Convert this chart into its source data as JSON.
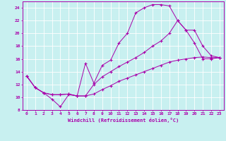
{
  "xlabel": "Windchill (Refroidissement éolien,°C)",
  "xlim": [
    -0.5,
    23.5
  ],
  "ylim": [
    8,
    25
  ],
  "xticks": [
    0,
    1,
    2,
    3,
    4,
    5,
    6,
    7,
    8,
    9,
    10,
    11,
    12,
    13,
    14,
    15,
    16,
    17,
    18,
    19,
    20,
    21,
    22,
    23
  ],
  "yticks": [
    8,
    10,
    12,
    14,
    16,
    18,
    20,
    22,
    24
  ],
  "background_color": "#c8f0f0",
  "grid_color": "#a0d8d8",
  "line_color": "#aa00aa",
  "line1_x": [
    0,
    1,
    2,
    3,
    4,
    5,
    6,
    7,
    8,
    9,
    10,
    11,
    12,
    13,
    14,
    15,
    16,
    17,
    18,
    19,
    20,
    21,
    22,
    23
  ],
  "line1_y": [
    13.3,
    11.5,
    10.7,
    9.7,
    8.5,
    10.4,
    10.2,
    15.3,
    12.2,
    15.0,
    15.8,
    18.5,
    20.0,
    23.2,
    24.0,
    24.5,
    24.5,
    24.3,
    22.0,
    20.5,
    18.5,
    16.0,
    16.0,
    16.2
  ],
  "line2_x": [
    0,
    1,
    2,
    3,
    4,
    5,
    6,
    7,
    8,
    9,
    10,
    11,
    12,
    13,
    14,
    15,
    16,
    17,
    18,
    19,
    20,
    21,
    22,
    23
  ],
  "line2_y": [
    13.3,
    11.5,
    10.7,
    10.4,
    10.4,
    10.5,
    10.2,
    10.2,
    12.0,
    13.2,
    14.0,
    14.8,
    15.5,
    16.2,
    17.0,
    18.0,
    18.8,
    20.0,
    22.0,
    20.5,
    20.5,
    18.0,
    16.5,
    16.2
  ],
  "line3_x": [
    0,
    1,
    2,
    3,
    4,
    5,
    6,
    7,
    8,
    9,
    10,
    11,
    12,
    13,
    14,
    15,
    16,
    17,
    18,
    19,
    20,
    21,
    22,
    23
  ],
  "line3_y": [
    13.3,
    11.5,
    10.7,
    10.4,
    10.4,
    10.5,
    10.2,
    10.2,
    10.5,
    11.2,
    11.8,
    12.5,
    13.0,
    13.5,
    14.0,
    14.5,
    15.0,
    15.5,
    15.8,
    16.0,
    16.2,
    16.3,
    16.2,
    16.2
  ]
}
